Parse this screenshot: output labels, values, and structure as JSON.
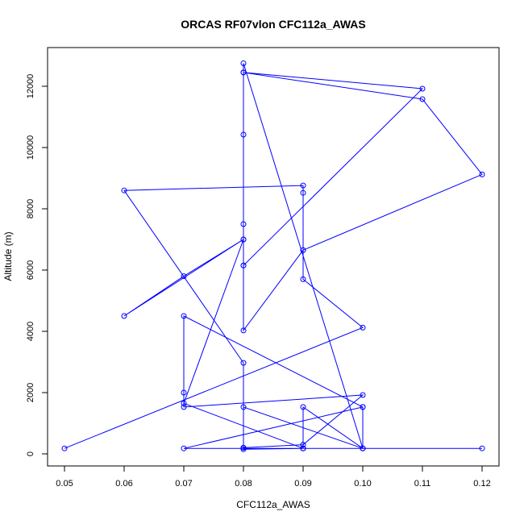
{
  "chart_data": {
    "type": "line",
    "title": "ORCAS RF07vlon CFC112a_AWAS",
    "xlabel": "CFC112a_AWAS",
    "ylabel": "Altitude (m)",
    "xlim": [
      0.05,
      0.12
    ],
    "ylim": [
      0,
      12800
    ],
    "xticks": [
      "0.05",
      "0.06",
      "0.07",
      "0.08",
      "0.09",
      "0.10",
      "0.11",
      "0.12"
    ],
    "xtick_values": [
      0.05,
      0.06,
      0.07,
      0.08,
      0.09,
      0.1,
      0.11,
      0.12
    ],
    "yticks": [
      "0",
      "2000",
      "4000",
      "6000",
      "8000",
      "10000",
      "12000"
    ],
    "ytick_values": [
      0,
      2000,
      4000,
      6000,
      8000,
      10000,
      12000
    ],
    "grid": false,
    "legend": "none",
    "series": [
      {
        "color": "#0000ff",
        "marker": "open-circle",
        "x": [
          0.05,
          0.1,
          0.09,
          0.09,
          0.08,
          0.08,
          0.08,
          0.08,
          0.08,
          0.11,
          0.12,
          0.09,
          0.09,
          0.09,
          0.06,
          0.08,
          0.08,
          0.09,
          0.1,
          0.07,
          0.07,
          0.07,
          0.1,
          0.1,
          0.08,
          0.08,
          0.08,
          0.09,
          0.09,
          0.1,
          0.1,
          0.07,
          0.09,
          0.07,
          0.08,
          0.06,
          0.07,
          0.08,
          0.08,
          0.11,
          0.08,
          0.08,
          0.1,
          0.09,
          0.12
        ],
        "y": [
          180,
          4120,
          5700,
          6650,
          4030,
          6150,
          7500,
          10420,
          12450,
          11580,
          9120,
          6650,
          8520,
          8760,
          8600,
          2970,
          200,
          300,
          1920,
          1530,
          2000,
          4500,
          1530,
          180,
          1530,
          200,
          150,
          180,
          1530,
          180,
          1530,
          180,
          180,
          1650,
          7000,
          4500,
          5800,
          7000,
          6150,
          11920,
          12450,
          12750,
          180,
          180,
          180
        ]
      }
    ]
  }
}
